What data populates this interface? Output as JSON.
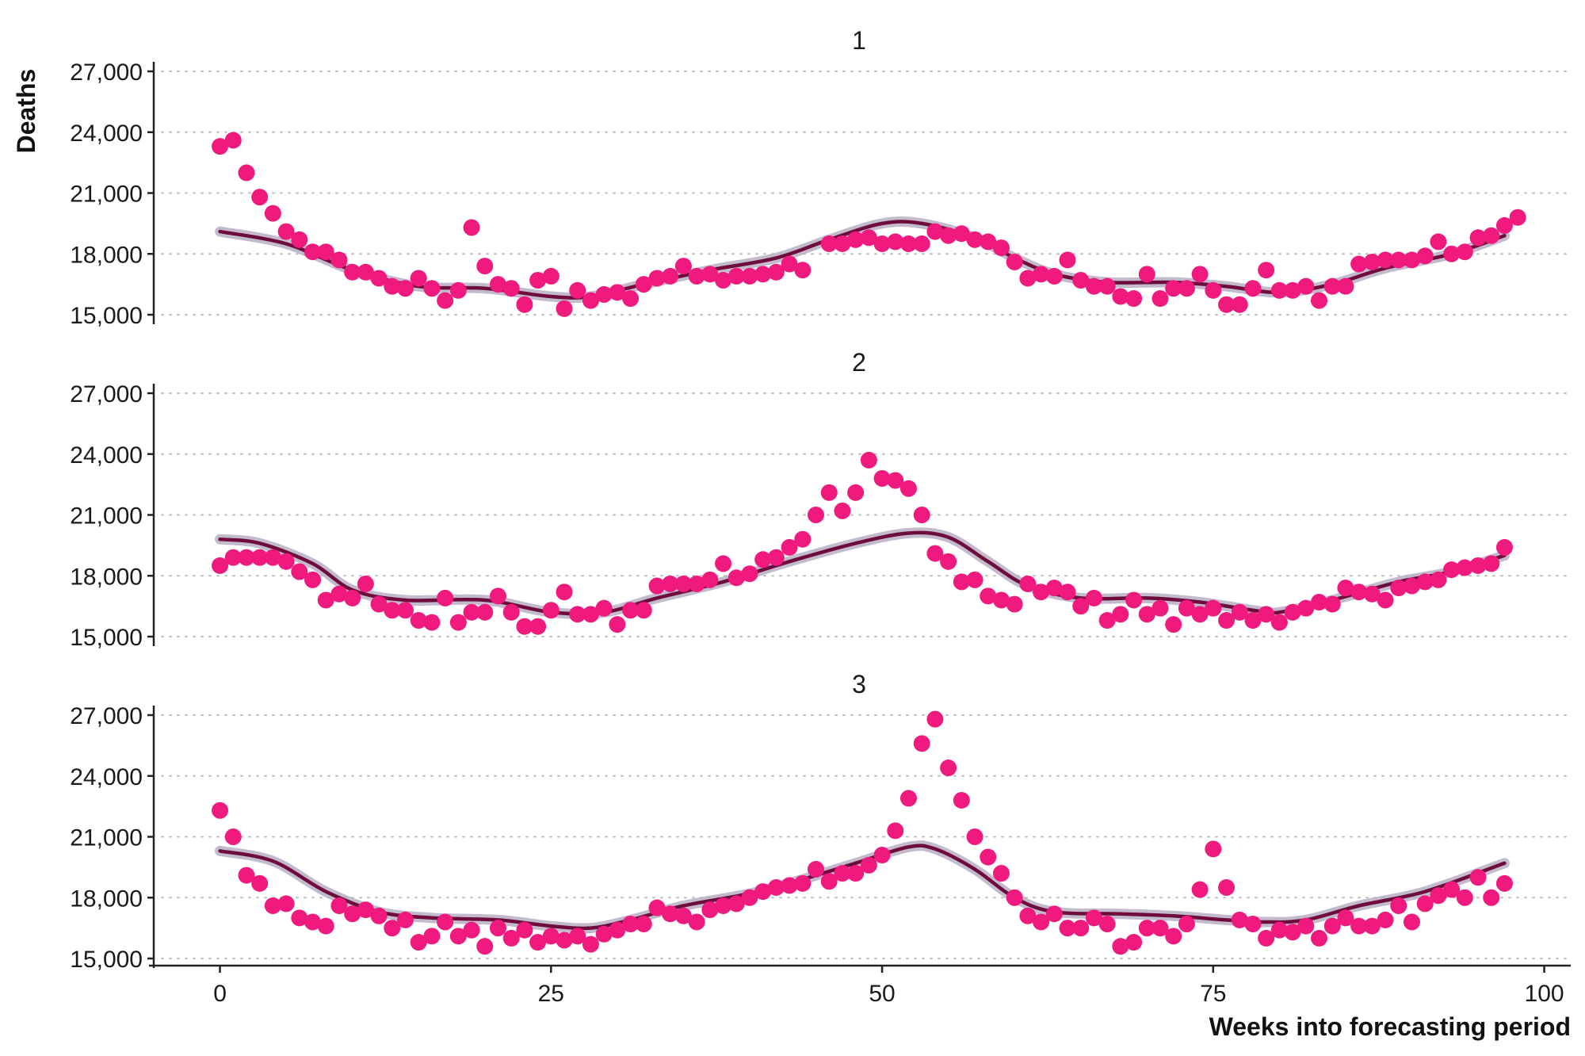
{
  "chart_data": {
    "type": "scatter",
    "xlabel": "Weeks into forecasting period",
    "ylabel": "Deaths",
    "xlim": [
      -5,
      102
    ],
    "ylim": [
      15000,
      27000
    ],
    "x_ticks": [
      0,
      25,
      50,
      75,
      100
    ],
    "x_tick_labels": [
      "0",
      "25",
      "50",
      "75",
      "100"
    ],
    "y_ticks": [
      15000,
      18000,
      21000,
      24000,
      27000
    ],
    "y_tick_labels": [
      "15,000",
      "18,000",
      "21,000",
      "24,000",
      "27,000"
    ],
    "grid": "horizontal dotted",
    "legend": "none",
    "colors": {
      "points": "#f0197d",
      "line": "#6e0d3c",
      "band": "#b8aec4"
    },
    "panels": [
      {
        "title": "1",
        "points": [
          23300,
          23600,
          22000,
          20800,
          20000,
          19100,
          18700,
          18100,
          18100,
          17700,
          17100,
          17100,
          16800,
          16400,
          16300,
          16800,
          16300,
          15700,
          16200,
          19300,
          17400,
          16500,
          16300,
          15500,
          16700,
          16900,
          15300,
          16200,
          15700,
          16000,
          16100,
          15800,
          16500,
          16800,
          16900,
          17400,
          16900,
          17000,
          16700,
          16900,
          16900,
          17000,
          17100,
          17500,
          17200,
          null,
          18500,
          18500,
          18700,
          18800,
          18500,
          18600,
          18500,
          18500,
          19100,
          18900,
          19000,
          18700,
          18600,
          18300,
          17600,
          16800,
          17000,
          16900,
          17700,
          16700,
          16400,
          16400,
          15900,
          15800,
          17000,
          15800,
          16300,
          16300,
          17000,
          16200,
          15500,
          15500,
          16300,
          17200,
          16200,
          16200,
          16400,
          15700,
          16400,
          16400,
          17500,
          17600,
          17700,
          17700,
          17700,
          17900,
          18600,
          18000,
          18100,
          18800,
          18900,
          19400,
          19800
        ],
        "trend": [
          [
            0,
            19100
          ],
          [
            5,
            18500
          ],
          [
            10,
            17200
          ],
          [
            15,
            16400
          ],
          [
            20,
            16300
          ],
          [
            25,
            15900
          ],
          [
            28,
            15900
          ],
          [
            32,
            16500
          ],
          [
            37,
            17200
          ],
          [
            42,
            17800
          ],
          [
            46,
            18700
          ],
          [
            50,
            19500
          ],
          [
            53,
            19500
          ],
          [
            57,
            18800
          ],
          [
            60,
            17800
          ],
          [
            63,
            17000
          ],
          [
            67,
            16600
          ],
          [
            72,
            16600
          ],
          [
            76,
            16400
          ],
          [
            80,
            16100
          ],
          [
            84,
            16500
          ],
          [
            88,
            17300
          ],
          [
            93,
            18000
          ],
          [
            97,
            18900
          ]
        ]
      },
      {
        "title": "2",
        "points": [
          18500,
          18900,
          18900,
          18900,
          18900,
          18700,
          18200,
          17800,
          16800,
          17100,
          16900,
          17600,
          16600,
          16300,
          16300,
          15800,
          15700,
          16900,
          15700,
          16200,
          16200,
          17000,
          16200,
          15500,
          15500,
          16300,
          17200,
          16100,
          16100,
          16400,
          15600,
          16300,
          16300,
          17500,
          17600,
          17600,
          17600,
          17800,
          18600,
          17900,
          18100,
          18800,
          18900,
          19400,
          19800,
          21000,
          22100,
          21200,
          22100,
          23700,
          22800,
          22700,
          22300,
          21000,
          19100,
          18700,
          17700,
          17800,
          17000,
          16800,
          16600,
          17600,
          17200,
          17400,
          17200,
          16500,
          16900,
          15800,
          16100,
          16800,
          16100,
          16400,
          15600,
          16400,
          16100,
          16400,
          15800,
          16200,
          15800,
          16100,
          15700,
          16200,
          16400,
          16700,
          16600,
          17400,
          17200,
          17100,
          16800,
          17400,
          17500,
          17700,
          17800,
          18300,
          18400,
          18500,
          18600,
          19400
        ],
        "trend": [
          [
            0,
            19800
          ],
          [
            3,
            19600
          ],
          [
            7,
            18600
          ],
          [
            10,
            17300
          ],
          [
            14,
            16800
          ],
          [
            20,
            16800
          ],
          [
            25,
            16200
          ],
          [
            29,
            16200
          ],
          [
            33,
            16900
          ],
          [
            38,
            17700
          ],
          [
            43,
            18700
          ],
          [
            48,
            19600
          ],
          [
            52,
            20100
          ],
          [
            55,
            19900
          ],
          [
            58,
            18700
          ],
          [
            61,
            17500
          ],
          [
            65,
            16900
          ],
          [
            70,
            16900
          ],
          [
            74,
            16700
          ],
          [
            78,
            16300
          ],
          [
            80,
            16200
          ],
          [
            84,
            16800
          ],
          [
            89,
            17700
          ],
          [
            93,
            18200
          ],
          [
            97,
            19000
          ]
        ]
      },
      {
        "title": "3",
        "points": [
          22300,
          21000,
          19100,
          18700,
          17600,
          17700,
          17000,
          16800,
          16600,
          17600,
          17200,
          17400,
          17100,
          16500,
          16900,
          15800,
          16100,
          16800,
          16100,
          16400,
          15600,
          16500,
          16000,
          16400,
          15800,
          16100,
          15900,
          16100,
          15700,
          16200,
          16400,
          16700,
          16700,
          17500,
          17200,
          17100,
          16800,
          17400,
          17600,
          17700,
          18000,
          18300,
          18500,
          18600,
          18700,
          19400,
          18800,
          19200,
          19200,
          19600,
          20100,
          21300,
          22900,
          25600,
          26800,
          24400,
          22800,
          21000,
          20000,
          19200,
          18000,
          17100,
          16800,
          17200,
          16500,
          16500,
          17000,
          16700,
          15600,
          15800,
          16500,
          16500,
          16100,
          16700,
          18400,
          20400,
          18500,
          16900,
          16700,
          16000,
          16400,
          16300,
          16600,
          16000,
          16600,
          17000,
          16600,
          16600,
          16900,
          17600,
          16800,
          17700,
          18100,
          18400,
          18000,
          19000,
          18000,
          18700
        ],
        "trend": [
          [
            0,
            20300
          ],
          [
            4,
            19800
          ],
          [
            8,
            18300
          ],
          [
            12,
            17300
          ],
          [
            16,
            17000
          ],
          [
            21,
            16900
          ],
          [
            25,
            16600
          ],
          [
            28,
            16500
          ],
          [
            31,
            16900
          ],
          [
            35,
            17600
          ],
          [
            40,
            18200
          ],
          [
            44,
            18900
          ],
          [
            48,
            19700
          ],
          [
            52,
            20500
          ],
          [
            54,
            20400
          ],
          [
            57,
            19400
          ],
          [
            60,
            18000
          ],
          [
            63,
            17300
          ],
          [
            68,
            17200
          ],
          [
            72,
            17100
          ],
          [
            76,
            16900
          ],
          [
            79,
            16800
          ],
          [
            82,
            16900
          ],
          [
            86,
            17600
          ],
          [
            91,
            18300
          ],
          [
            97,
            19700
          ]
        ]
      }
    ]
  }
}
